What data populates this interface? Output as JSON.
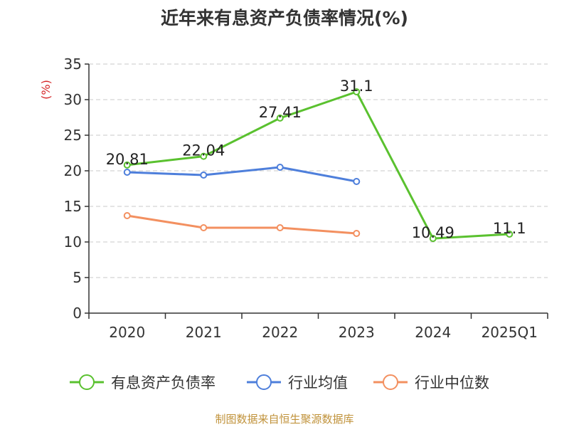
{
  "title": "近年来有息资产负债率情况(%)",
  "source": "制图数据来自恒生聚源数据库",
  "chart_data": {
    "type": "line",
    "categories": [
      "2020",
      "2021",
      "2022",
      "2023",
      "2024",
      "2025Q1"
    ],
    "ylabel": "(%)",
    "ylim": [
      0,
      35
    ],
    "yticks": [
      0,
      5,
      10,
      15,
      20,
      25,
      30,
      35
    ],
    "grid": true,
    "legend_position": "bottom",
    "series": [
      {
        "name": "有息资产负债率",
        "color": "#5ac12f",
        "values": [
          20.81,
          22.04,
          27.41,
          31.1,
          10.49,
          11.1
        ],
        "show_labels": true
      },
      {
        "name": "行业均值",
        "color": "#4e7fdb",
        "values": [
          19.8,
          19.4,
          20.5,
          18.5,
          null,
          null
        ],
        "show_labels": false
      },
      {
        "name": "行业中位数",
        "color": "#f39060",
        "values": [
          13.7,
          12.0,
          12.0,
          11.2,
          null,
          null
        ],
        "show_labels": false
      }
    ]
  }
}
